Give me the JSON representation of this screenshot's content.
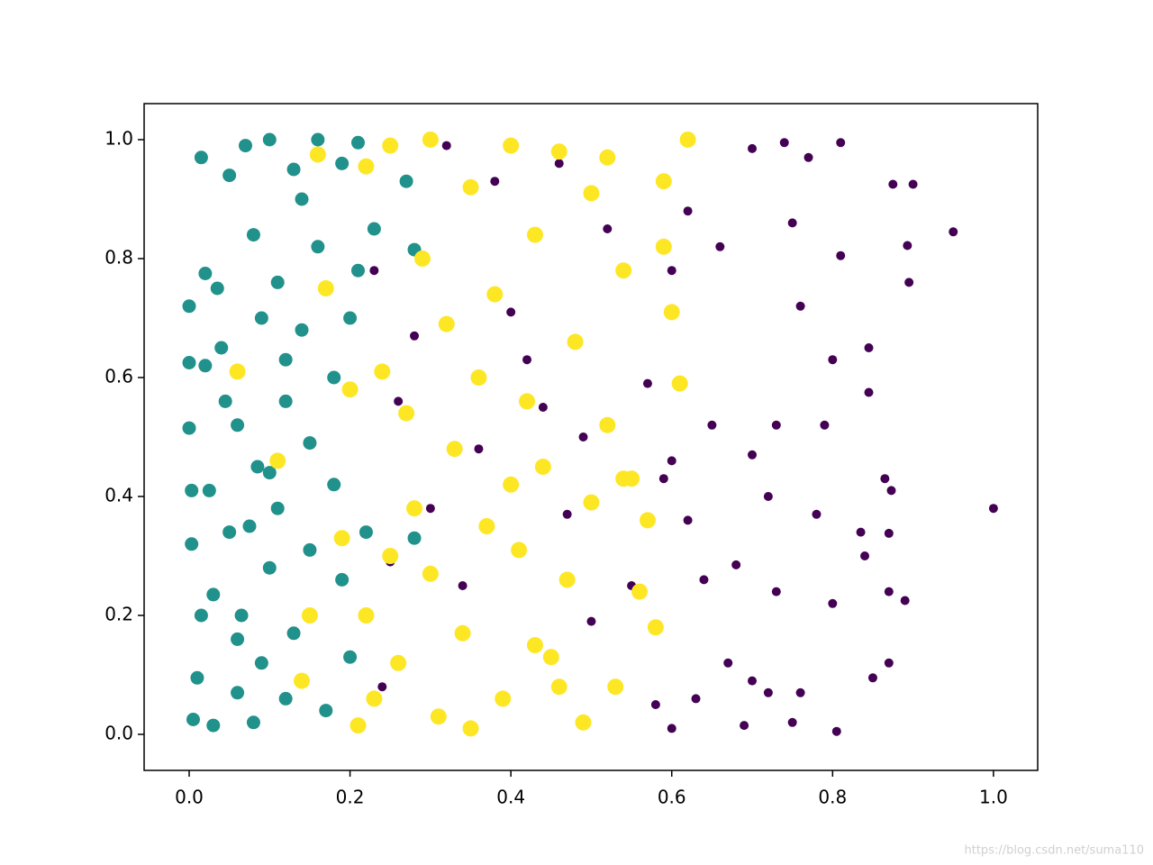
{
  "chart_data": {
    "type": "scatter",
    "xlim": [
      -0.056,
      1.055
    ],
    "ylim": [
      -0.0606,
      1.0606
    ],
    "xticks": [
      {
        "value": 0,
        "label": "0.0"
      },
      0.2,
      0.4,
      0.6,
      0.8,
      {
        "value": 1,
        "label": "1.0"
      }
    ],
    "yticks": [
      {
        "value": 0,
        "label": "0.0"
      },
      0.2,
      0.4,
      0.6,
      0.8,
      {
        "value": 1,
        "label": "1.0"
      }
    ],
    "grid": false,
    "series": [
      {
        "color": "#440154",
        "x": [
          1.0,
          0.95,
          0.895,
          0.893,
          0.9,
          0.875,
          0.87,
          0.865,
          0.873,
          0.89,
          0.87,
          0.87,
          0.845,
          0.845,
          0.85,
          0.835,
          0.84,
          0.81,
          0.81,
          0.8,
          0.805,
          0.8,
          0.77,
          0.78,
          0.76,
          0.75,
          0.74,
          0.73,
          0.72,
          0.72,
          0.7,
          0.7,
          0.7,
          0.69,
          0.68,
          0.66,
          0.65,
          0.64,
          0.63,
          0.62,
          0.6,
          0.6,
          0.59,
          0.58,
          0.57,
          0.55,
          0.53,
          0.52,
          0.5,
          0.49,
          0.47,
          0.46,
          0.44,
          0.42,
          0.4,
          0.38,
          0.36,
          0.34,
          0.32,
          0.3,
          0.28,
          0.26,
          0.25,
          0.24,
          0.23,
          0.62,
          0.67,
          0.76,
          0.79,
          0.6,
          0.75,
          0.73
        ],
        "y": [
          0.38,
          0.845,
          0.76,
          0.822,
          0.925,
          0.925,
          0.12,
          0.43,
          0.41,
          0.225,
          0.338,
          0.24,
          0.65,
          0.575,
          0.095,
          0.34,
          0.3,
          0.995,
          0.805,
          0.22,
          0.005,
          0.63,
          0.97,
          0.37,
          0.72,
          0.86,
          0.995,
          0.52,
          0.4,
          0.07,
          0.985,
          0.47,
          0.09,
          0.015,
          0.285,
          0.82,
          0.52,
          0.26,
          0.06,
          0.88,
          0.78,
          0.46,
          0.43,
          0.05,
          0.59,
          0.25,
          0.08,
          0.85,
          0.19,
          0.5,
          0.37,
          0.96,
          0.55,
          0.63,
          0.71,
          0.93,
          0.48,
          0.25,
          0.99,
          0.38,
          0.67,
          0.56,
          0.29,
          0.08,
          0.78,
          0.36,
          0.12,
          0.07,
          0.52,
          0.01,
          0.02,
          0.24
        ]
      },
      {
        "color": "#21918c",
        "x": [
          0.0,
          0.0,
          0.0,
          0.003,
          0.003,
          0.005,
          0.01,
          0.015,
          0.015,
          0.02,
          0.02,
          0.025,
          0.03,
          0.03,
          0.035,
          0.04,
          0.045,
          0.05,
          0.06,
          0.06,
          0.065,
          0.07,
          0.075,
          0.08,
          0.085,
          0.09,
          0.09,
          0.1,
          0.1,
          0.11,
          0.11,
          0.12,
          0.12,
          0.13,
          0.13,
          0.14,
          0.15,
          0.15,
          0.16,
          0.16,
          0.17,
          0.18,
          0.18,
          0.19,
          0.2,
          0.2,
          0.21,
          0.21,
          0.22,
          0.23,
          0.27,
          0.28,
          0.28,
          0.19,
          0.05,
          0.06,
          0.14,
          0.12,
          0.1,
          0.08
        ],
        "y": [
          0.515,
          0.72,
          0.625,
          0.41,
          0.32,
          0.025,
          0.095,
          0.2,
          0.97,
          0.775,
          0.62,
          0.41,
          0.015,
          0.235,
          0.75,
          0.65,
          0.56,
          0.94,
          0.52,
          0.07,
          0.2,
          0.99,
          0.35,
          0.84,
          0.45,
          0.7,
          0.12,
          1.0,
          0.28,
          0.76,
          0.38,
          0.56,
          0.06,
          0.95,
          0.17,
          0.68,
          0.31,
          0.49,
          1.0,
          0.82,
          0.04,
          0.6,
          0.42,
          0.26,
          0.7,
          0.13,
          0.995,
          0.78,
          0.34,
          0.85,
          0.93,
          0.815,
          0.33,
          0.96,
          0.34,
          0.16,
          0.9,
          0.63,
          0.44,
          0.02
        ]
      },
      {
        "color": "#fde725",
        "x": [
          0.62,
          0.59,
          0.59,
          0.6,
          0.58,
          0.57,
          0.56,
          0.55,
          0.54,
          0.53,
          0.52,
          0.5,
          0.5,
          0.49,
          0.48,
          0.47,
          0.46,
          0.45,
          0.44,
          0.43,
          0.42,
          0.41,
          0.4,
          0.39,
          0.38,
          0.37,
          0.36,
          0.35,
          0.34,
          0.33,
          0.32,
          0.31,
          0.3,
          0.3,
          0.29,
          0.28,
          0.27,
          0.26,
          0.25,
          0.25,
          0.24,
          0.23,
          0.22,
          0.22,
          0.21,
          0.2,
          0.19,
          0.17,
          0.16,
          0.06,
          0.15,
          0.14,
          0.11,
          0.35,
          0.43,
          0.46,
          0.52,
          0.54,
          0.61,
          0.4
        ],
        "y": [
          1.0,
          0.93,
          0.82,
          0.71,
          0.18,
          0.36,
          0.24,
          0.43,
          0.78,
          0.08,
          0.52,
          0.91,
          0.39,
          0.02,
          0.66,
          0.26,
          0.98,
          0.13,
          0.45,
          0.84,
          0.56,
          0.31,
          0.99,
          0.06,
          0.74,
          0.35,
          0.6,
          0.92,
          0.17,
          0.48,
          0.69,
          0.03,
          1.0,
          0.27,
          0.8,
          0.38,
          0.54,
          0.12,
          0.99,
          0.3,
          0.61,
          0.06,
          0.955,
          0.2,
          0.015,
          0.58,
          0.33,
          0.75,
          0.975,
          0.61,
          0.2,
          0.09,
          0.46,
          0.01,
          0.15,
          0.08,
          0.97,
          0.43,
          0.59,
          0.42
        ]
      }
    ]
  },
  "watermark": "https://blog.csdn.net/suma110"
}
